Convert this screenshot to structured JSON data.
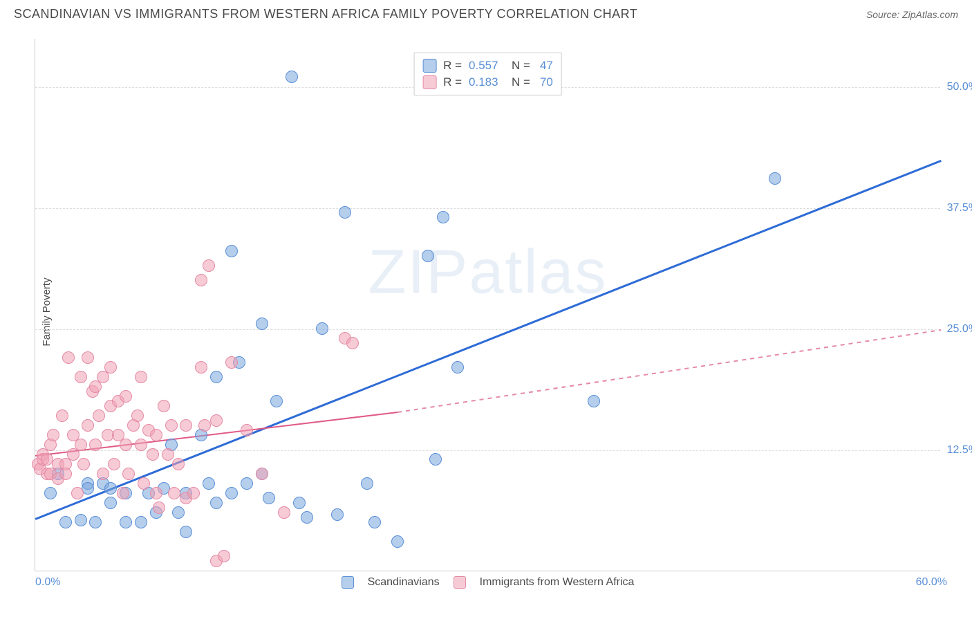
{
  "header": {
    "title": "SCANDINAVIAN VS IMMIGRANTS FROM WESTERN AFRICA FAMILY POVERTY CORRELATION CHART",
    "source": "Source: ZipAtlas.com"
  },
  "chart": {
    "type": "scatter",
    "ylabel": "Family Poverty",
    "watermark_left": "ZIP",
    "watermark_right": "atlas",
    "background_color": "#ffffff",
    "grid_color": "#dddddd",
    "axis_color": "#cccccc",
    "tick_color": "#5a8fd6",
    "xlim": [
      0,
      60
    ],
    "ylim": [
      0,
      55
    ],
    "xticks": [
      {
        "value": 0,
        "label": "0.0%"
      },
      {
        "value": 60,
        "label": "60.0%"
      }
    ],
    "yticks": [
      {
        "value": 12.5,
        "label": "12.5%"
      },
      {
        "value": 25.0,
        "label": "25.0%"
      },
      {
        "value": 37.5,
        "label": "37.5%"
      },
      {
        "value": 50.0,
        "label": "50.0%"
      }
    ],
    "series": [
      {
        "name": "Scandinavians",
        "marker_color_fill": "rgba(120,165,220,0.55)",
        "marker_color_stroke": "#5a8fd6",
        "marker_size": 18,
        "stats": {
          "r": "0.557",
          "n": "47"
        },
        "regression": {
          "x1": 0,
          "y1": 5.5,
          "x2": 60,
          "y2": 42.5,
          "color": "#2e6bd6",
          "width": 2.5,
          "dash": "solid"
        },
        "points": [
          {
            "x": 1,
            "y": 8
          },
          {
            "x": 1.5,
            "y": 10
          },
          {
            "x": 2,
            "y": 5
          },
          {
            "x": 3,
            "y": 5.2
          },
          {
            "x": 3.5,
            "y": 9
          },
          {
            "x": 3.5,
            "y": 8.5
          },
          {
            "x": 4,
            "y": 5
          },
          {
            "x": 4.5,
            "y": 9
          },
          {
            "x": 5,
            "y": 8.5
          },
          {
            "x": 5,
            "y": 7
          },
          {
            "x": 6,
            "y": 5
          },
          {
            "x": 6,
            "y": 8
          },
          {
            "x": 7,
            "y": 5
          },
          {
            "x": 7.5,
            "y": 8
          },
          {
            "x": 8,
            "y": 6
          },
          {
            "x": 8.5,
            "y": 8.5
          },
          {
            "x": 9,
            "y": 13
          },
          {
            "x": 9.5,
            "y": 6
          },
          {
            "x": 10,
            "y": 8
          },
          {
            "x": 10,
            "y": 4
          },
          {
            "x": 11,
            "y": 14
          },
          {
            "x": 11.5,
            "y": 9
          },
          {
            "x": 12,
            "y": 20
          },
          {
            "x": 12,
            "y": 7
          },
          {
            "x": 13,
            "y": 8
          },
          {
            "x": 13,
            "y": 33
          },
          {
            "x": 13.5,
            "y": 21.5
          },
          {
            "x": 14,
            "y": 9
          },
          {
            "x": 15,
            "y": 25.5
          },
          {
            "x": 15,
            "y": 10
          },
          {
            "x": 15.5,
            "y": 7.5
          },
          {
            "x": 16,
            "y": 17.5
          },
          {
            "x": 17,
            "y": 51
          },
          {
            "x": 17.5,
            "y": 7
          },
          {
            "x": 18,
            "y": 5.5
          },
          {
            "x": 19,
            "y": 25
          },
          {
            "x": 20,
            "y": 5.8
          },
          {
            "x": 20.5,
            "y": 37
          },
          {
            "x": 22,
            "y": 9
          },
          {
            "x": 22.5,
            "y": 5
          },
          {
            "x": 24,
            "y": 3
          },
          {
            "x": 26,
            "y": 32.5
          },
          {
            "x": 26.5,
            "y": 11.5
          },
          {
            "x": 27,
            "y": 36.5
          },
          {
            "x": 37,
            "y": 17.5
          },
          {
            "x": 49,
            "y": 40.5
          },
          {
            "x": 28,
            "y": 21
          }
        ]
      },
      {
        "name": "Immigrants from Western Africa",
        "marker_color_fill": "rgba(240,160,180,0.55)",
        "marker_color_stroke": "#e48aa4",
        "marker_size": 18,
        "stats": {
          "r": "0.183",
          "n": "70"
        },
        "regression": {
          "solid": {
            "x1": 0,
            "y1": 12,
            "x2": 24,
            "y2": 16.5,
            "color": "#e05a85",
            "width": 2,
            "dash": "solid"
          },
          "dashed": {
            "x1": 24,
            "y1": 16.5,
            "x2": 60,
            "y2": 25,
            "color": "#e48aa4",
            "width": 1.5,
            "dash": "dashed"
          }
        },
        "points": [
          {
            "x": 0.2,
            "y": 11
          },
          {
            "x": 0.3,
            "y": 10.5
          },
          {
            "x": 0.5,
            "y": 12
          },
          {
            "x": 0.5,
            "y": 11.5
          },
          {
            "x": 0.8,
            "y": 10
          },
          {
            "x": 0.8,
            "y": 11.5
          },
          {
            "x": 1,
            "y": 13
          },
          {
            "x": 1,
            "y": 10
          },
          {
            "x": 1.2,
            "y": 14
          },
          {
            "x": 1.5,
            "y": 11
          },
          {
            "x": 1.5,
            "y": 9.5
          },
          {
            "x": 1.8,
            "y": 16
          },
          {
            "x": 2,
            "y": 11
          },
          {
            "x": 2,
            "y": 10
          },
          {
            "x": 2.2,
            "y": 22
          },
          {
            "x": 2.5,
            "y": 12
          },
          {
            "x": 2.5,
            "y": 14
          },
          {
            "x": 2.8,
            "y": 8
          },
          {
            "x": 3,
            "y": 20
          },
          {
            "x": 3,
            "y": 13
          },
          {
            "x": 3.2,
            "y": 11
          },
          {
            "x": 3.5,
            "y": 15
          },
          {
            "x": 3.5,
            "y": 22
          },
          {
            "x": 3.8,
            "y": 18.5
          },
          {
            "x": 4,
            "y": 19
          },
          {
            "x": 4,
            "y": 13
          },
          {
            "x": 4.2,
            "y": 16
          },
          {
            "x": 4.5,
            "y": 10
          },
          {
            "x": 4.5,
            "y": 20
          },
          {
            "x": 4.8,
            "y": 14
          },
          {
            "x": 5,
            "y": 21
          },
          {
            "x": 5,
            "y": 17
          },
          {
            "x": 5.2,
            "y": 11
          },
          {
            "x": 5.5,
            "y": 17.5
          },
          {
            "x": 5.5,
            "y": 14
          },
          {
            "x": 5.8,
            "y": 8
          },
          {
            "x": 6,
            "y": 13
          },
          {
            "x": 6,
            "y": 18
          },
          {
            "x": 6.2,
            "y": 10
          },
          {
            "x": 6.5,
            "y": 15
          },
          {
            "x": 6.8,
            "y": 16
          },
          {
            "x": 7,
            "y": 13
          },
          {
            "x": 7,
            "y": 20
          },
          {
            "x": 7.2,
            "y": 9
          },
          {
            "x": 7.5,
            "y": 14.5
          },
          {
            "x": 7.8,
            "y": 12
          },
          {
            "x": 8,
            "y": 14
          },
          {
            "x": 8,
            "y": 8
          },
          {
            "x": 8.2,
            "y": 6.5
          },
          {
            "x": 8.5,
            "y": 17
          },
          {
            "x": 8.8,
            "y": 12
          },
          {
            "x": 9,
            "y": 15
          },
          {
            "x": 9.2,
            "y": 8
          },
          {
            "x": 9.5,
            "y": 11
          },
          {
            "x": 10,
            "y": 15
          },
          {
            "x": 10,
            "y": 7.5
          },
          {
            "x": 10.5,
            "y": 8
          },
          {
            "x": 11,
            "y": 30
          },
          {
            "x": 11,
            "y": 21
          },
          {
            "x": 11.2,
            "y": 15
          },
          {
            "x": 11.5,
            "y": 31.5
          },
          {
            "x": 12,
            "y": 1
          },
          {
            "x": 12,
            "y": 15.5
          },
          {
            "x": 12.5,
            "y": 1.5
          },
          {
            "x": 13,
            "y": 21.5
          },
          {
            "x": 14,
            "y": 14.5
          },
          {
            "x": 15,
            "y": 10
          },
          {
            "x": 16.5,
            "y": 6
          },
          {
            "x": 20.5,
            "y": 24
          },
          {
            "x": 21,
            "y": 23.5
          }
        ]
      }
    ],
    "legend_bottom": [
      {
        "swatch": "blue",
        "label": "Scandinavians"
      },
      {
        "swatch": "pink",
        "label": "Immigrants from Western Africa"
      }
    ]
  }
}
